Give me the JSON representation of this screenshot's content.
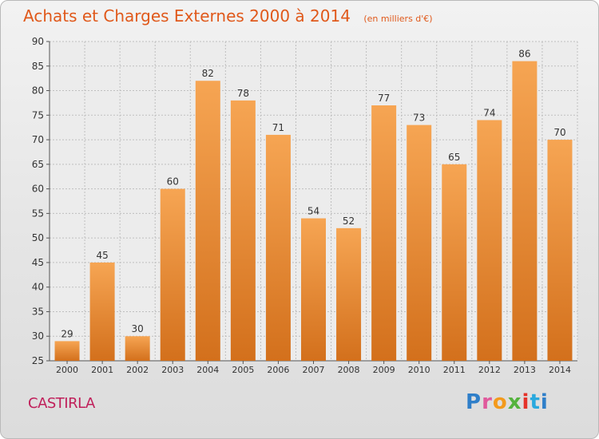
{
  "header": {
    "title": "Achats et Charges Externes 2000 à 2014",
    "subtitle": "(en milliers d'€)"
  },
  "footer": {
    "place": "CASTIRLA",
    "logo_text": "Proxiti",
    "logo_letters": [
      "P",
      "r",
      "o",
      "x",
      "i",
      "t",
      "i"
    ]
  },
  "colors": {
    "title": "#e0591b",
    "place": "#c01f5a",
    "bar_top": "#f6a553",
    "bar_bottom": "#d3701c",
    "grid": "#bfbfbf"
  },
  "chart_data": {
    "type": "bar",
    "categories": [
      "2000",
      "2001",
      "2002",
      "2003",
      "2004",
      "2005",
      "2006",
      "2007",
      "2008",
      "2009",
      "2010",
      "2011",
      "2012",
      "2013",
      "2014"
    ],
    "values": [
      29,
      45,
      30,
      60,
      82,
      78,
      71,
      54,
      52,
      77,
      73,
      65,
      74,
      86,
      70
    ],
    "title": "Achats et Charges Externes 2000 à 2014",
    "subtitle": "(en milliers d'€)",
    "xlabel": "",
    "ylabel": "",
    "ylim": [
      25,
      90
    ],
    "yticks": [
      "25",
      "30",
      "35",
      "40",
      "45",
      "50",
      "55",
      "60",
      "65",
      "70",
      "75",
      "80",
      "85",
      "90"
    ],
    "grid": true,
    "data_labels": true
  }
}
